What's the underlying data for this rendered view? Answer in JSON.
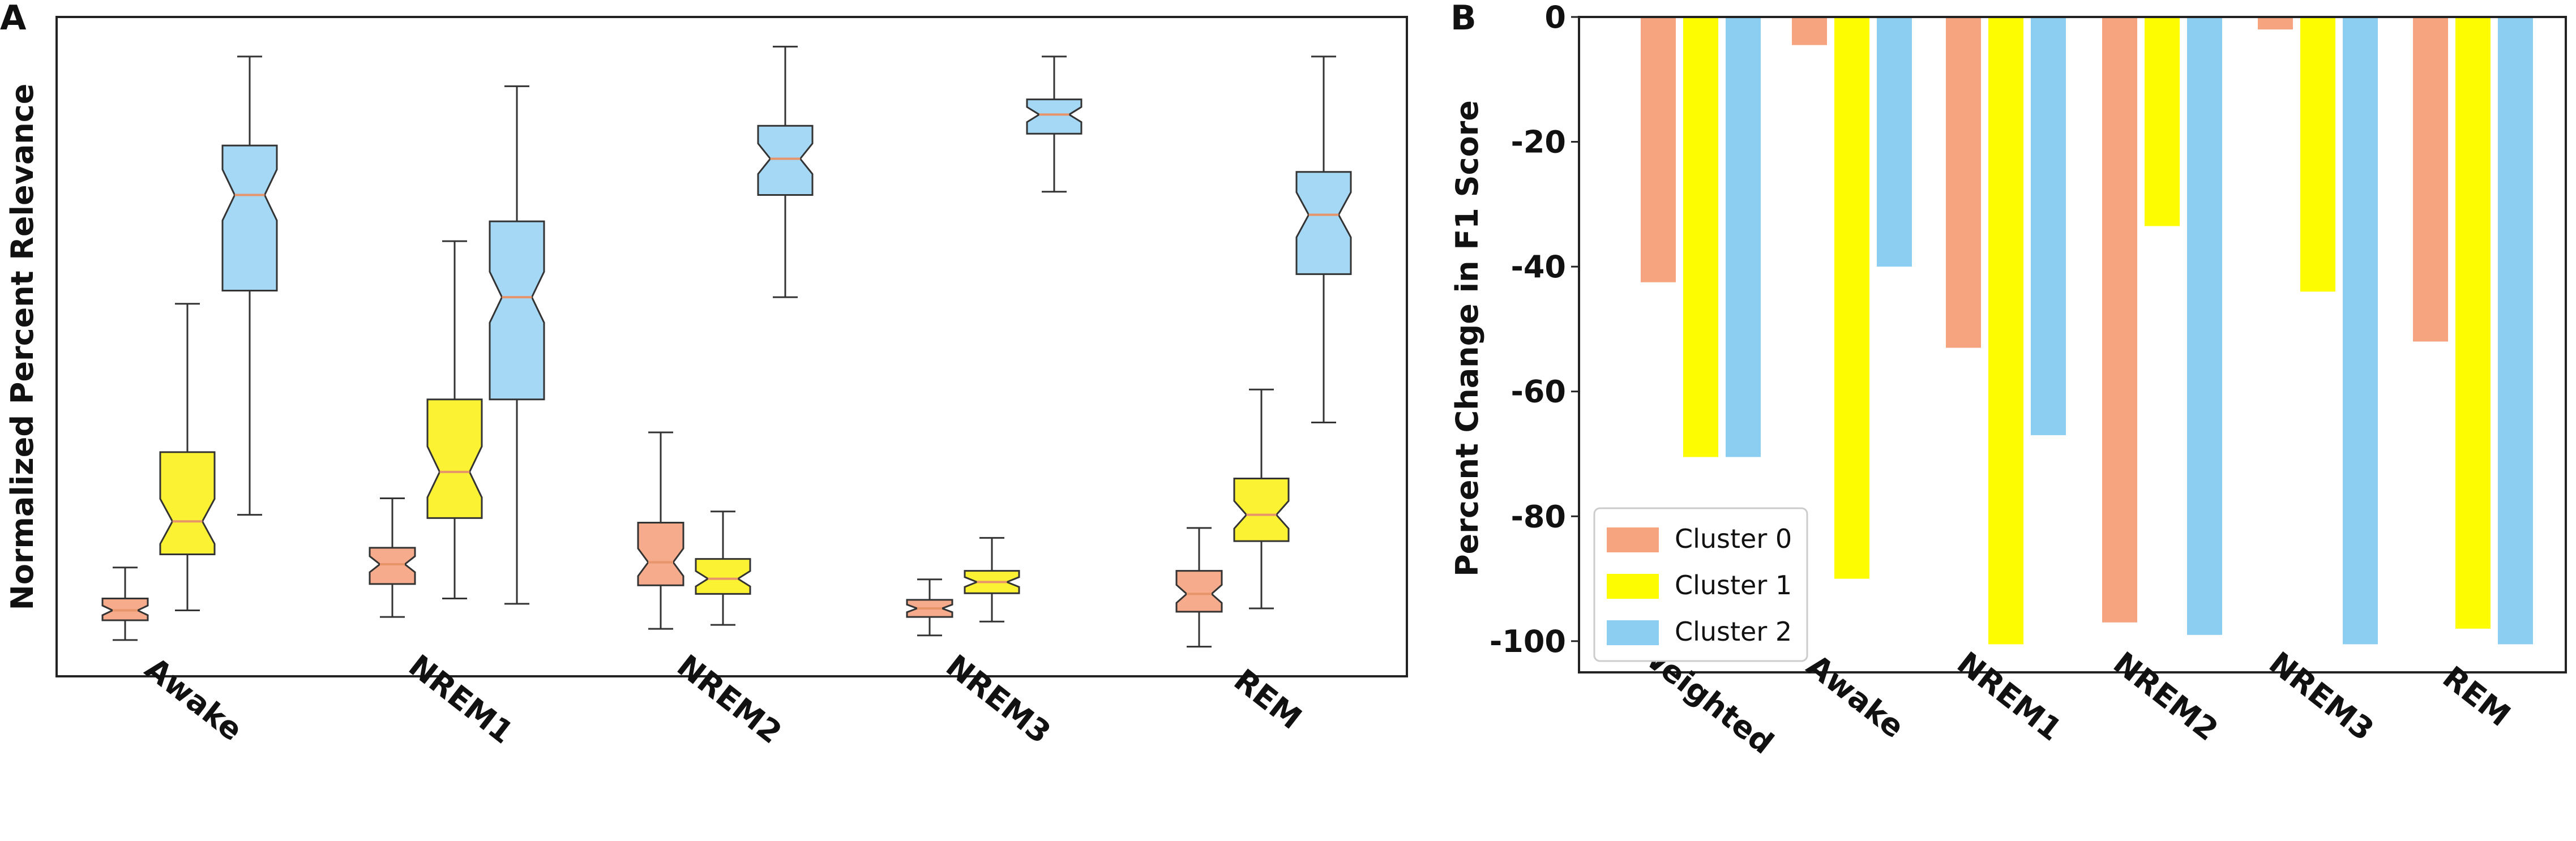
{
  "chart_data": [
    {
      "panel": "A",
      "type": "box",
      "ylabel": "Normalized Percent Relevance",
      "categories": [
        "Awake",
        "NREM1",
        "NREM2",
        "NREM3",
        "REM"
      ],
      "ylim": [
        0,
        1
      ],
      "series_colors": [
        "#f6ab8c",
        "#fbf233",
        "#a5d8f5"
      ],
      "median_color": "#e8946a",
      "boxes": [
        [
          {
            "min": 0.055,
            "q1": 0.085,
            "median": 0.1,
            "q3": 0.118,
            "max": 0.165
          },
          {
            "min": 0.1,
            "q1": 0.185,
            "median": 0.235,
            "q3": 0.34,
            "max": 0.565
          },
          {
            "min": 0.245,
            "q1": 0.585,
            "median": 0.73,
            "q3": 0.805,
            "max": 0.94
          }
        ],
        [
          {
            "min": 0.09,
            "q1": 0.14,
            "median": 0.17,
            "q3": 0.195,
            "max": 0.27
          },
          {
            "min": 0.118,
            "q1": 0.24,
            "median": 0.31,
            "q3": 0.42,
            "max": 0.66
          },
          {
            "min": 0.11,
            "q1": 0.42,
            "median": 0.575,
            "q3": 0.69,
            "max": 0.895
          }
        ],
        [
          {
            "min": 0.072,
            "q1": 0.138,
            "median": 0.173,
            "q3": 0.233,
            "max": 0.37
          },
          {
            "min": 0.078,
            "q1": 0.125,
            "median": 0.148,
            "q3": 0.178,
            "max": 0.25
          },
          {
            "min": 0.575,
            "q1": 0.73,
            "median": 0.785,
            "q3": 0.835,
            "max": 0.955
          }
        ],
        [
          {
            "min": 0.062,
            "q1": 0.09,
            "median": 0.103,
            "q3": 0.116,
            "max": 0.147
          },
          {
            "min": 0.083,
            "q1": 0.126,
            "median": 0.143,
            "q3": 0.16,
            "max": 0.21
          },
          {
            "min": 0.735,
            "q1": 0.823,
            "median": 0.852,
            "q3": 0.875,
            "max": 0.94
          }
        ],
        [
          {
            "min": 0.045,
            "q1": 0.098,
            "median": 0.125,
            "q3": 0.16,
            "max": 0.225
          },
          {
            "min": 0.103,
            "q1": 0.205,
            "median": 0.245,
            "q3": 0.3,
            "max": 0.435
          },
          {
            "min": 0.385,
            "q1": 0.61,
            "median": 0.7,
            "q3": 0.765,
            "max": 0.94
          }
        ]
      ]
    },
    {
      "panel": "B",
      "type": "bar",
      "ylabel": "Percent Change in F1 Score",
      "categories": [
        "Weighted",
        "Awake",
        "NREM1",
        "NREM2",
        "NREM3",
        "REM"
      ],
      "ylim": [
        -105,
        0
      ],
      "yticks": [
        0,
        -20,
        -40,
        -60,
        -80,
        -100
      ],
      "ytick_labels": [
        "0",
        "-20",
        "-40",
        "-60",
        "-80",
        "-100"
      ],
      "series": [
        {
          "name": "Cluster 0",
          "color": "#f5a47f",
          "values": [
            -42.5,
            -4.5,
            -53,
            -97,
            -2,
            -52
          ]
        },
        {
          "name": "Cluster 1",
          "color": "#fdfc00",
          "values": [
            -70.5,
            -90,
            -100.5,
            -33.5,
            -44,
            -98
          ]
        },
        {
          "name": "Cluster 2",
          "color": "#8ccdf2",
          "values": [
            -70.5,
            -40,
            -67,
            -99,
            -100.5,
            -100.5
          ]
        }
      ]
    }
  ],
  "panel_labels": {
    "a": "A",
    "b": "B"
  }
}
